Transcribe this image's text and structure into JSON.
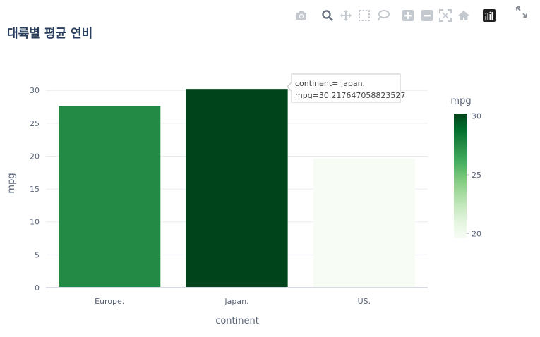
{
  "title": "대륙별 평균 연비",
  "modebar": {
    "buttons": [
      {
        "name": "camera-icon"
      },
      {
        "name": "zoom-icon"
      },
      {
        "name": "pan-icon"
      },
      {
        "name": "box-select-icon"
      },
      {
        "name": "lasso-select-icon"
      },
      {
        "name": "zoom-in-icon"
      },
      {
        "name": "zoom-out-icon"
      },
      {
        "name": "autoscale-icon"
      },
      {
        "name": "reset-axes-icon"
      },
      {
        "name": "plotly-logo-icon"
      }
    ],
    "fullscreen": {
      "name": "fullscreen-icon"
    }
  },
  "hover": {
    "line1": "continent= Japan.",
    "line2": "mpg=30.217647058823527"
  },
  "chart_data": {
    "type": "bar",
    "title": "대륙별 평균 연비",
    "xlabel": "continent",
    "ylabel": "mpg",
    "categories": [
      "Europe.",
      "Japan.",
      "US."
    ],
    "values": [
      27.6,
      30.217647058823527,
      19.6
    ],
    "ylim": [
      0,
      31.2
    ],
    "yticks": [
      0,
      5,
      10,
      15,
      20,
      25,
      30
    ],
    "grid": true,
    "colorscale": {
      "name": "mpg",
      "cmin": 19.6,
      "cmax": 30.217647058823527,
      "ticks": [
        20,
        25,
        30
      ],
      "colors": [
        "#f7fcf5",
        "#e5f5e0",
        "#c7e9c0",
        "#a1d99b",
        "#74c476",
        "#41ab5d",
        "#238b45",
        "#006d2c",
        "#00441b"
      ]
    }
  }
}
